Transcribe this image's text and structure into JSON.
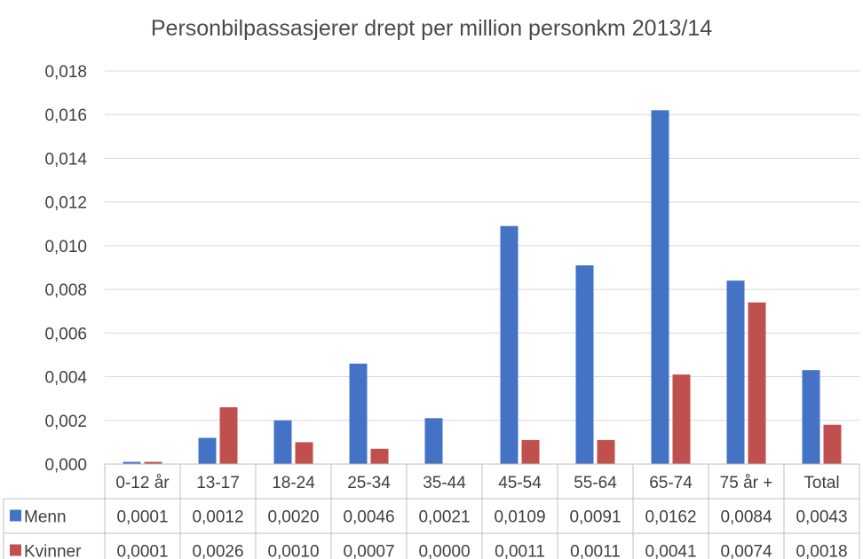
{
  "chart_data": {
    "type": "bar",
    "title": "Personbilpassasjerer drept per million personkm 2013/14",
    "categories": [
      "0-12 år",
      "13-17",
      "18-24",
      "25-34",
      "35-44",
      "45-54",
      "55-64",
      "65-74",
      "75 år +",
      "Total"
    ],
    "series": [
      {
        "name": "Menn",
        "color": "#4472c4",
        "values": [
          0.0001,
          0.0012,
          0.002,
          0.0046,
          0.0021,
          0.0109,
          0.0091,
          0.0162,
          0.0084,
          0.0043
        ],
        "labels": [
          "0,0001",
          "0,0012",
          "0,0020",
          "0,0046",
          "0,0021",
          "0,0109",
          "0,0091",
          "0,0162",
          "0,0084",
          "0,0043"
        ]
      },
      {
        "name": "Kvinner",
        "color": "#c0504d",
        "values": [
          0.0001,
          0.0026,
          0.001,
          0.0007,
          0.0,
          0.0011,
          0.0011,
          0.0041,
          0.0074,
          0.0018
        ],
        "labels": [
          "0,0001",
          "0,0026",
          "0,0010",
          "0,0007",
          "0,0000",
          "0,0011",
          "0,0011",
          "0,0041",
          "0,0074",
          "0,0018"
        ]
      }
    ],
    "ylim": [
      0,
      0.018
    ],
    "yticks": [
      "0,000",
      "0,002",
      "0,004",
      "0,006",
      "0,008",
      "0,010",
      "0,012",
      "0,014",
      "0,016",
      "0,018"
    ],
    "grid": true,
    "legend": "data table",
    "xlabel": "",
    "ylabel": ""
  }
}
